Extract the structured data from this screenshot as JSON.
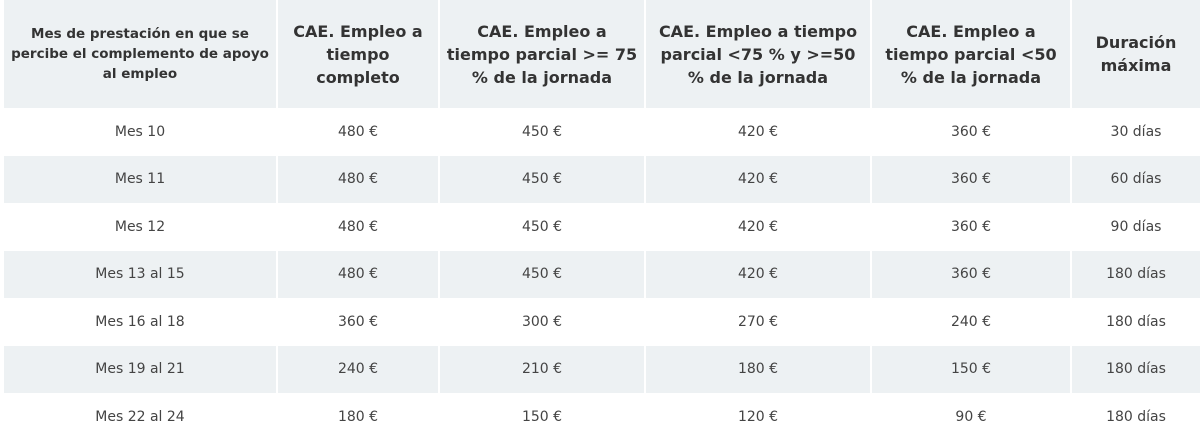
{
  "colors": {
    "header_bg": "#edf1f3",
    "row_shaded_bg": "#edf1f3",
    "row_plain_bg": "#ffffff",
    "text": "#333333"
  },
  "table": {
    "headers": [
      "Mes de prestación en que se percibe el complemento de apoyo al empleo",
      "CAE. Empleo a tiempo completo",
      "CAE. Empleo a tiempo parcial >= 75 % de la jornada",
      "CAE. Empleo a tiempo parcial <75 % y >=50 % de la jornada",
      "CAE. Empleo a tiempo parcial <50 % de la jornada",
      "Duración máxima"
    ],
    "rows": [
      [
        "Mes 10",
        "480 €",
        "450 €",
        "420 €",
        "360 €",
        "30 días"
      ],
      [
        "Mes 11",
        "480 €",
        "450 €",
        "420 €",
        "360 €",
        "60 días"
      ],
      [
        "Mes 12",
        "480 €",
        "450 €",
        "420 €",
        "360 €",
        "90 días"
      ],
      [
        "Mes 13 al 15",
        "480 €",
        "450 €",
        "420 €",
        "360 €",
        "180 días"
      ],
      [
        "Mes 16 al 18",
        "360 €",
        "300 €",
        "270 €",
        "240 €",
        "180 días"
      ],
      [
        "Mes 19 al 21",
        "240 €",
        "210 €",
        "180 €",
        "150 €",
        "180 días"
      ],
      [
        "Mes 22 al 24",
        "180 €",
        "150 €",
        "120 €",
        "90 €",
        "180 días"
      ]
    ]
  }
}
